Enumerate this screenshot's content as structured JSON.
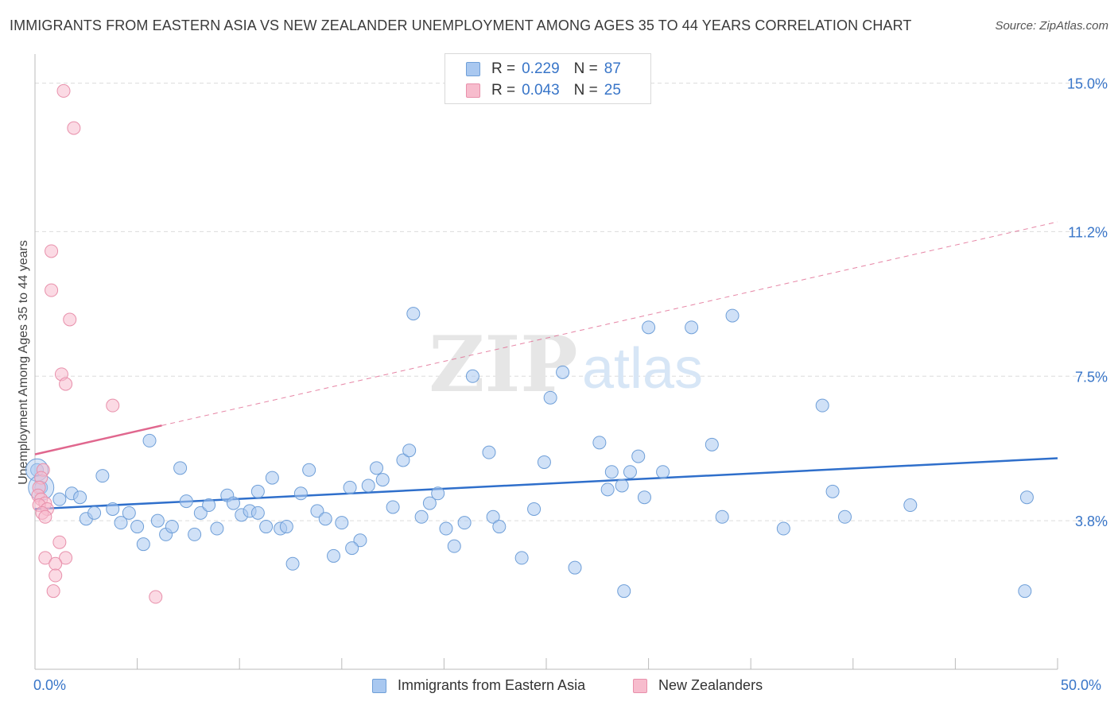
{
  "chart_data": {
    "type": "scatter",
    "title": "IMMIGRANTS FROM EASTERN ASIA VS NEW ZEALANDER UNEMPLOYMENT AMONG AGES 35 TO 44 YEARS CORRELATION CHART",
    "source": "Source: ZipAtlas.com",
    "xlabel": "",
    "ylabel": "Unemployment Among Ages 35 to 44 years",
    "xlim": [
      0,
      50
    ],
    "ylim": [
      0,
      15.5
    ],
    "x_tick_labels": {
      "min": "0.0%",
      "max": "50.0%"
    },
    "y_ticks": [
      {
        "value": 3.8,
        "label": "3.8%"
      },
      {
        "value": 7.5,
        "label": "7.5%"
      },
      {
        "value": 11.2,
        "label": "11.2%"
      },
      {
        "value": 15.0,
        "label": "15.0%"
      }
    ],
    "watermark": {
      "zip": "ZIP",
      "atlas": "atlas"
    },
    "legend": {
      "r_label": "R =",
      "n_label": "N =",
      "entries": [
        {
          "name": "Immigrants from Eastern Asia",
          "r": "0.229",
          "n": "87",
          "color": "#a9c8f0",
          "edge": "#6f9fd8"
        },
        {
          "name": "New Zealanders",
          "r": "0.043",
          "n": "25",
          "color": "#f7bccd",
          "edge": "#e890ab"
        }
      ]
    },
    "series": [
      {
        "name": "Immigrants from Eastern Asia",
        "color": "#a9c8f0",
        "edge": "#6f9fd8",
        "trend": {
          "x": [
            0,
            50
          ],
          "y": [
            4.1,
            5.4
          ],
          "color": "#2f6fcb"
        },
        "points": [
          [
            0.1,
            5.1
          ],
          [
            0.3,
            4.65
          ],
          [
            1.2,
            4.35
          ],
          [
            1.8,
            4.5
          ],
          [
            2.2,
            4.4
          ],
          [
            2.5,
            3.85
          ],
          [
            2.9,
            4.0
          ],
          [
            3.3,
            4.95
          ],
          [
            3.8,
            4.1
          ],
          [
            4.2,
            3.75
          ],
          [
            4.6,
            4.0
          ],
          [
            5.0,
            3.65
          ],
          [
            5.3,
            3.2
          ],
          [
            5.6,
            5.85
          ],
          [
            6.0,
            3.8
          ],
          [
            6.4,
            3.45
          ],
          [
            6.7,
            3.65
          ],
          [
            7.1,
            5.15
          ],
          [
            7.4,
            4.3
          ],
          [
            7.8,
            3.45
          ],
          [
            8.1,
            4.0
          ],
          [
            8.5,
            4.2
          ],
          [
            8.9,
            3.6
          ],
          [
            9.4,
            4.45
          ],
          [
            9.7,
            4.25
          ],
          [
            10.1,
            3.95
          ],
          [
            10.5,
            4.05
          ],
          [
            10.9,
            4.55
          ],
          [
            11.3,
            3.65
          ],
          [
            11.6,
            4.9
          ],
          [
            12.0,
            3.6
          ],
          [
            12.3,
            3.65
          ],
          [
            12.6,
            2.7
          ],
          [
            13.0,
            4.5
          ],
          [
            13.4,
            5.1
          ],
          [
            13.8,
            4.05
          ],
          [
            14.2,
            3.85
          ],
          [
            14.6,
            2.9
          ],
          [
            15.0,
            3.75
          ],
          [
            15.4,
            4.65
          ],
          [
            15.9,
            3.3
          ],
          [
            16.3,
            4.7
          ],
          [
            16.7,
            5.15
          ],
          [
            17.0,
            4.85
          ],
          [
            17.5,
            4.15
          ],
          [
            18.0,
            5.35
          ],
          [
            18.3,
            5.6
          ],
          [
            18.5,
            9.1
          ],
          [
            18.9,
            3.9
          ],
          [
            19.3,
            4.25
          ],
          [
            19.7,
            4.5
          ],
          [
            20.1,
            3.6
          ],
          [
            20.5,
            3.15
          ],
          [
            21.0,
            3.75
          ],
          [
            21.4,
            7.5
          ],
          [
            22.2,
            5.55
          ],
          [
            22.4,
            3.9
          ],
          [
            22.7,
            3.65
          ],
          [
            23.8,
            2.85
          ],
          [
            24.4,
            4.1
          ],
          [
            24.9,
            5.3
          ],
          [
            25.2,
            6.95
          ],
          [
            25.8,
            7.6
          ],
          [
            26.4,
            2.6
          ],
          [
            27.6,
            5.8
          ],
          [
            28.0,
            4.6
          ],
          [
            28.2,
            5.05
          ],
          [
            28.7,
            4.7
          ],
          [
            29.1,
            5.05
          ],
          [
            29.5,
            5.45
          ],
          [
            29.8,
            4.4
          ],
          [
            30.0,
            8.75
          ],
          [
            30.7,
            5.05
          ],
          [
            33.1,
            5.75
          ],
          [
            32.1,
            8.75
          ],
          [
            33.6,
            3.9
          ],
          [
            34.1,
            9.05
          ],
          [
            36.6,
            3.6
          ],
          [
            38.5,
            6.75
          ],
          [
            39.0,
            4.55
          ],
          [
            39.6,
            3.9
          ],
          [
            42.8,
            4.2
          ],
          [
            48.5,
            4.4
          ],
          [
            48.4,
            2.0
          ],
          [
            28.8,
            2.0
          ],
          [
            15.5,
            3.1
          ],
          [
            10.9,
            4.0
          ]
        ]
      },
      {
        "name": "New Zealanders",
        "color": "#f7bccd",
        "edge": "#e890ab",
        "trend": {
          "x": [
            0,
            50
          ],
          "y": [
            5.5,
            11.45
          ],
          "solid_to_x": 6.2,
          "color": "#e0678e"
        },
        "points": [
          [
            1.4,
            14.8
          ],
          [
            1.9,
            13.85
          ],
          [
            0.8,
            10.7
          ],
          [
            0.8,
            9.7
          ],
          [
            1.7,
            8.95
          ],
          [
            1.3,
            7.55
          ],
          [
            1.5,
            7.3
          ],
          [
            3.8,
            6.75
          ],
          [
            0.4,
            5.1
          ],
          [
            0.3,
            4.9
          ],
          [
            0.2,
            4.65
          ],
          [
            0.15,
            4.45
          ],
          [
            0.3,
            4.35
          ],
          [
            0.5,
            4.25
          ],
          [
            0.2,
            4.2
          ],
          [
            0.6,
            4.1
          ],
          [
            0.35,
            4.0
          ],
          [
            0.5,
            3.9
          ],
          [
            1.2,
            3.25
          ],
          [
            0.5,
            2.85
          ],
          [
            1.5,
            2.85
          ],
          [
            1.0,
            2.7
          ],
          [
            1.0,
            2.4
          ],
          [
            0.9,
            2.0
          ],
          [
            5.9,
            1.85
          ]
        ]
      }
    ]
  }
}
